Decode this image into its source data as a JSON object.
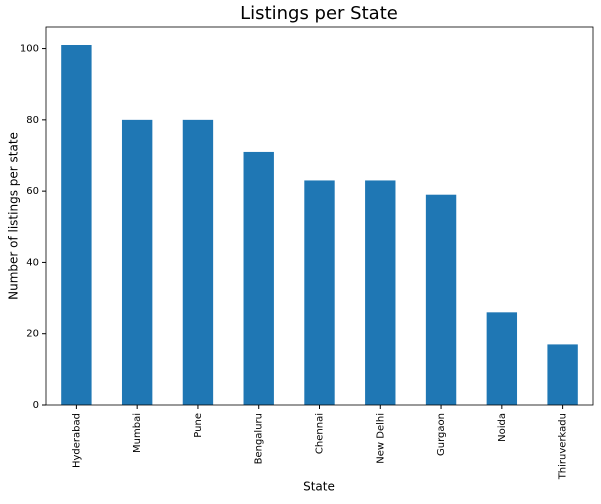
{
  "chart_data": {
    "type": "bar",
    "title": "Listings per State",
    "x_label": "State",
    "y_label": "Number of listings per state",
    "categories": [
      "Hyderabad",
      "Mumbai",
      "Pune",
      "Bengaluru",
      "Chennai",
      "New Delhi",
      "Gurgaon",
      "Noida",
      "Thiruverkadu"
    ],
    "values": [
      101,
      80,
      80,
      71,
      63,
      63,
      59,
      26,
      17
    ],
    "color": "#1f77b4",
    "ylim": [
      0,
      106.05
    ],
    "yticks": [
      0,
      20,
      40,
      60,
      80,
      100
    ],
    "grid": false
  }
}
